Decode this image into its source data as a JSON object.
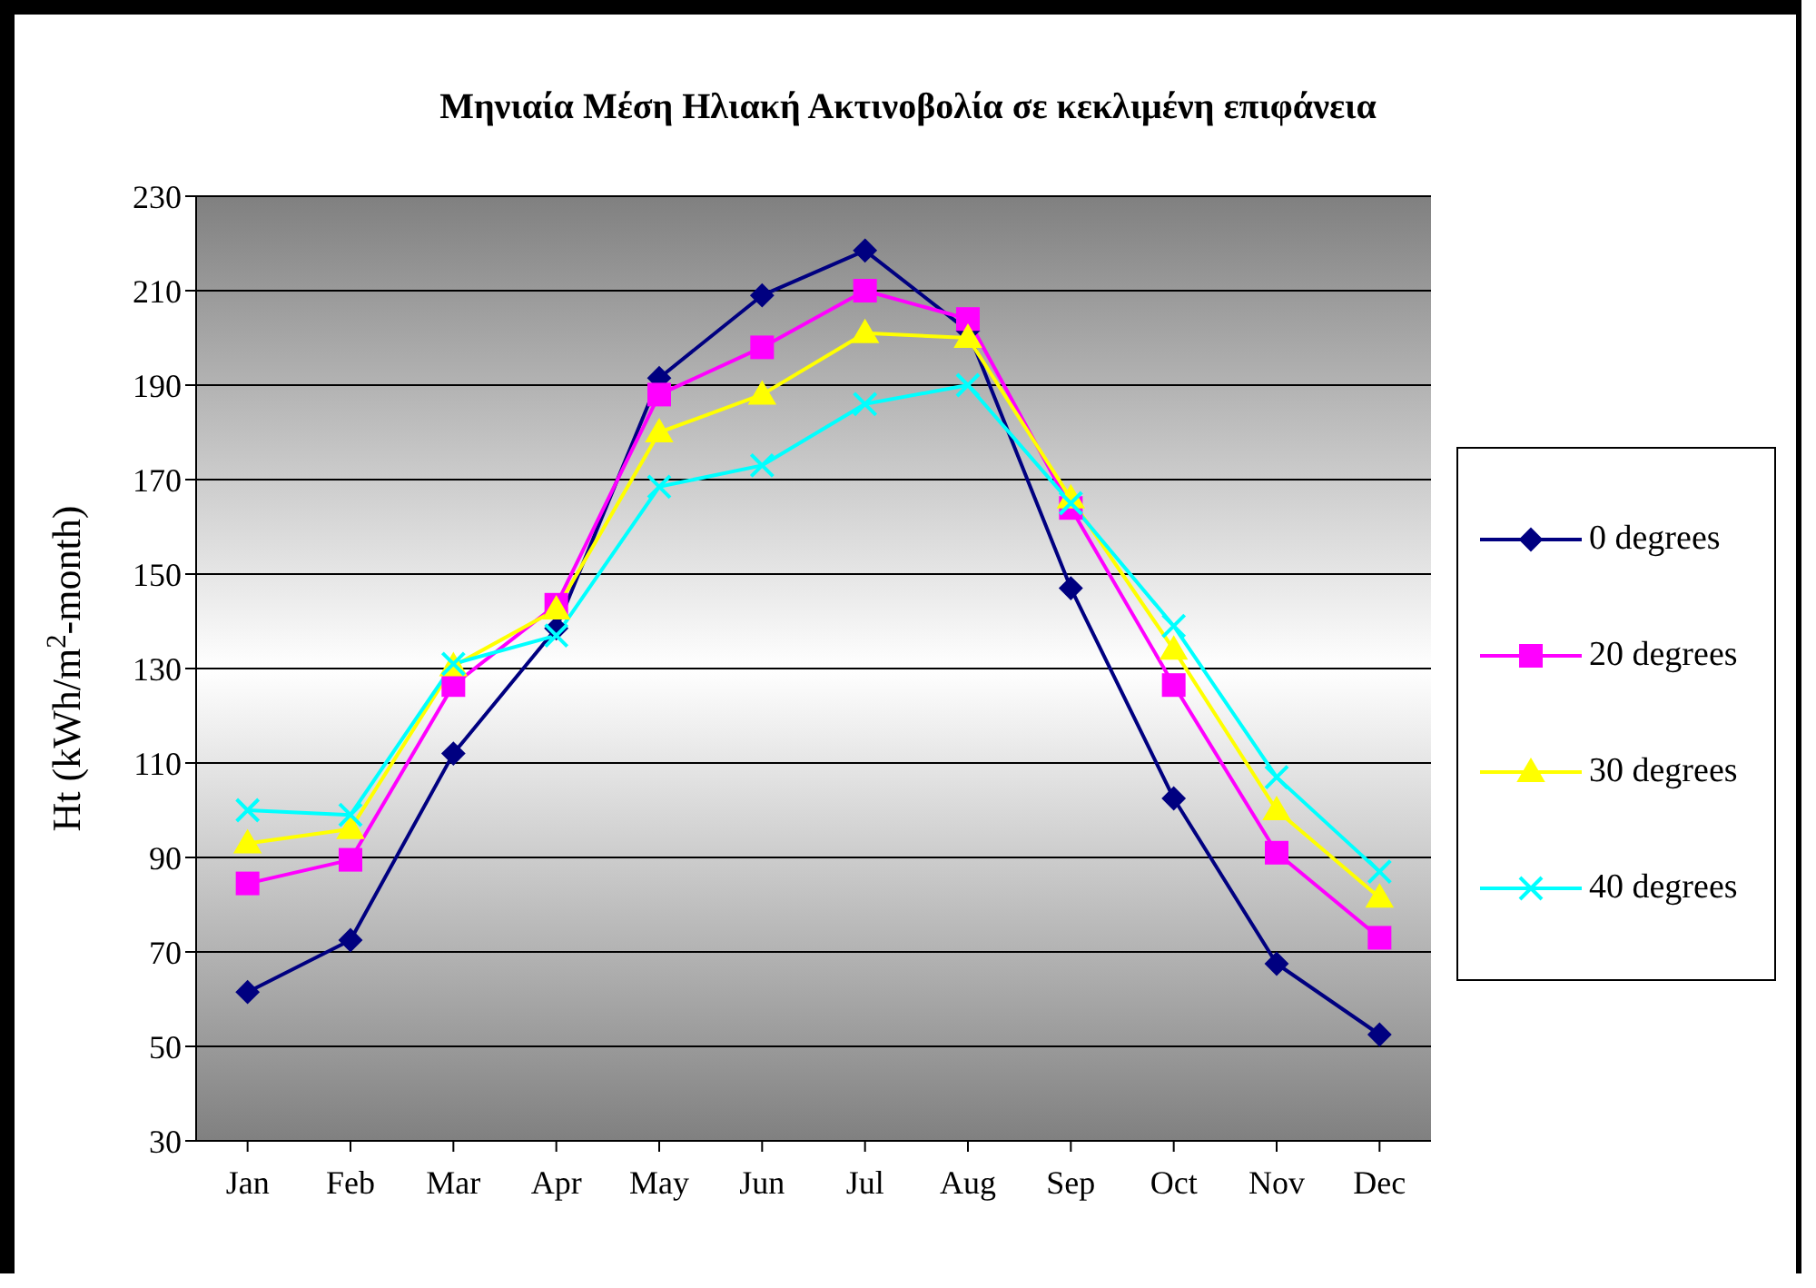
{
  "chart_data": {
    "type": "line",
    "title": "Μηνιαία Μέση Ηλιακή Ακτινοβολία σε κεκλιμένη επιφάνεια",
    "ylabel": "Ht (kWh/m$^{2}$-month)",
    "categories": [
      "Jan",
      "Feb",
      "Mar",
      "Apr",
      "May",
      "Jun",
      "Jul",
      "Aug",
      "Sep",
      "Oct",
      "Nov",
      "Dec"
    ],
    "series": [
      {
        "name": "0 degrees",
        "color": "#000080",
        "marker": "diamond",
        "values": [
          61.5,
          72.5,
          112,
          138.5,
          191.5,
          209,
          218.5,
          201.5,
          147,
          102.5,
          67.5,
          52.5
        ]
      },
      {
        "name": "20 degrees",
        "color": "#ff00ff",
        "marker": "square",
        "values": [
          84.5,
          89.5,
          126.5,
          143.5,
          188,
          198,
          210,
          204,
          164,
          126.5,
          91,
          73
        ]
      },
      {
        "name": "30 degrees",
        "color": "#ffff00",
        "marker": "triangle",
        "values": [
          93,
          96,
          130.5,
          142.5,
          180,
          188,
          201,
          200,
          166,
          134,
          100,
          81.5
        ]
      },
      {
        "name": "40 degrees",
        "color": "#00ffff",
        "marker": "cross",
        "values": [
          100,
          99,
          131,
          137,
          168.5,
          173,
          186,
          190,
          165,
          139,
          107,
          87
        ]
      }
    ],
    "ylim": [
      30,
      230
    ],
    "yticks": [
      30,
      50,
      70,
      90,
      110,
      130,
      150,
      170,
      190,
      210,
      230
    ],
    "grid": "y",
    "legend": "right"
  }
}
